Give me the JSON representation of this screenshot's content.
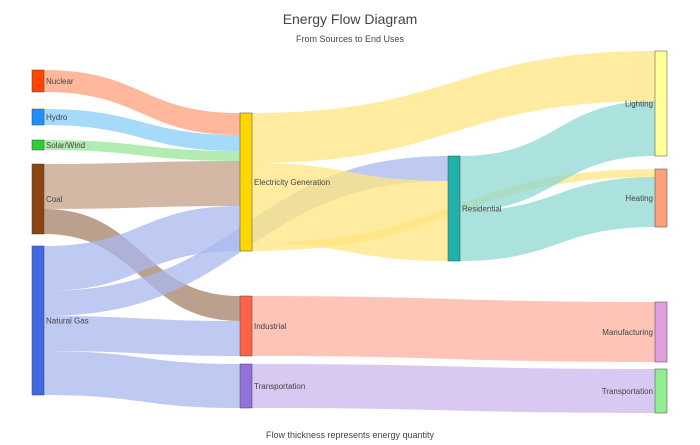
{
  "chart_data": {
    "type": "sankey",
    "title": "Energy Flow Diagram",
    "subtitle": "From Sources to End Uses",
    "footer": "Flow thickness represents energy quantity",
    "nodes": [
      {
        "id": "nuclear",
        "label": "Nuclear",
        "color": "#ff4500"
      },
      {
        "id": "hydro",
        "label": "Hydro",
        "color": "#1e90ff"
      },
      {
        "id": "solar",
        "label": "Solar/Wind",
        "color": "#32cd32"
      },
      {
        "id": "coal",
        "label": "Coal",
        "color": "#8b4513"
      },
      {
        "id": "gas",
        "label": "Natural Gas",
        "color": "#4169e1"
      },
      {
        "id": "elec",
        "label": "Electricity Generation",
        "color": "#ffd700"
      },
      {
        "id": "industrial",
        "label": "Industrial",
        "color": "#ff6347"
      },
      {
        "id": "transport",
        "label": "Transportation",
        "color": "#9370db"
      },
      {
        "id": "residential",
        "label": "Residential",
        "color": "#20b2aa"
      },
      {
        "id": "lighting",
        "label": "Lighting",
        "color": "#ffff99"
      },
      {
        "id": "heating",
        "label": "Heating",
        "color": "#ffa07a"
      },
      {
        "id": "manufacturing",
        "label": "Manufacturing",
        "color": "#dda0dd"
      },
      {
        "id": "transportation_use",
        "label": "Transportation",
        "color": "#90ee90"
      }
    ],
    "links": [
      {
        "source": "nuclear",
        "target": "elec",
        "value": 22,
        "color": "#ffa07a"
      },
      {
        "source": "hydro",
        "target": "elec",
        "value": 16,
        "color": "#87cefa"
      },
      {
        "source": "solar",
        "target": "elec",
        "value": 10,
        "color": "#98e698"
      },
      {
        "source": "coal",
        "target": "elec",
        "value": 45,
        "color": "#c4a088"
      },
      {
        "source": "coal",
        "target": "industrial",
        "value": 25,
        "color": "#a68068"
      },
      {
        "source": "gas",
        "target": "elec",
        "value": 45,
        "color": "#aab8ee"
      },
      {
        "source": "gas",
        "target": "residential",
        "value": 25,
        "color": "#aab8ee"
      },
      {
        "source": "gas",
        "target": "industrial",
        "value": 35,
        "color": "#aab8ee"
      },
      {
        "source": "gas",
        "target": "transport",
        "value": 44,
        "color": "#aab8ee"
      },
      {
        "source": "elec",
        "target": "lighting",
        "value": 50,
        "color": "#ffe680"
      },
      {
        "source": "elec",
        "target": "residential",
        "value": 80,
        "color": "#ffe680"
      },
      {
        "source": "elec",
        "target": "heating",
        "value": 8,
        "color": "#ffe680"
      },
      {
        "source": "residential",
        "target": "lighting",
        "value": 55,
        "color": "#8fd8d2"
      },
      {
        "source": "residential",
        "target": "heating",
        "value": 50,
        "color": "#8fd8d2"
      },
      {
        "source": "industrial",
        "target": "manufacturing",
        "value": 60,
        "color": "#ffb0a0"
      },
      {
        "source": "transport",
        "target": "transportation_use",
        "value": 44,
        "color": "#cbb6ee"
      }
    ]
  }
}
